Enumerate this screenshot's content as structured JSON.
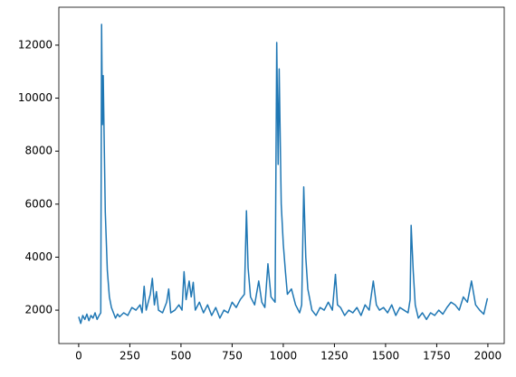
{
  "chart_data": {
    "type": "line",
    "x": [
      0,
      10,
      20,
      30,
      40,
      50,
      60,
      70,
      80,
      90,
      100,
      108,
      112,
      116,
      120,
      124,
      130,
      140,
      150,
      160,
      170,
      180,
      190,
      200,
      220,
      240,
      260,
      280,
      300,
      310,
      320,
      330,
      350,
      360,
      370,
      380,
      390,
      410,
      430,
      440,
      450,
      470,
      490,
      505,
      515,
      525,
      540,
      550,
      560,
      570,
      590,
      610,
      630,
      650,
      670,
      690,
      710,
      730,
      750,
      770,
      790,
      810,
      820,
      828,
      840,
      860,
      880,
      895,
      910,
      925,
      940,
      960,
      968,
      975,
      980,
      990,
      1000,
      1010,
      1020,
      1040,
      1060,
      1080,
      1090,
      1100,
      1110,
      1120,
      1140,
      1160,
      1180,
      1200,
      1220,
      1240,
      1255,
      1265,
      1280,
      1300,
      1320,
      1340,
      1360,
      1380,
      1400,
      1420,
      1440,
      1455,
      1470,
      1490,
      1510,
      1530,
      1550,
      1570,
      1590,
      1610,
      1620,
      1625,
      1635,
      1645,
      1660,
      1680,
      1700,
      1720,
      1740,
      1760,
      1780,
      1800,
      1820,
      1840,
      1860,
      1880,
      1900,
      1920,
      1940,
      1960,
      1980,
      1998
    ],
    "series": [
      {
        "color": "#1f77b4",
        "values": [
          1750,
          1500,
          1800,
          1650,
          1850,
          1600,
          1800,
          1700,
          1900,
          1650,
          1800,
          1900,
          12780,
          9000,
          10850,
          8700,
          5700,
          3500,
          2500,
          2100,
          1900,
          1700,
          1850,
          1750,
          1900,
          1800,
          2100,
          2000,
          2200,
          1900,
          2900,
          2000,
          2600,
          3200,
          2200,
          2700,
          2000,
          1900,
          2300,
          2800,
          1900,
          2000,
          2200,
          2000,
          3450,
          2400,
          3100,
          2500,
          3050,
          2000,
          2300,
          1900,
          2200,
          1800,
          2100,
          1700,
          2000,
          1900,
          2300,
          2100,
          2400,
          2600,
          5750,
          3600,
          2500,
          2200,
          3100,
          2300,
          2100,
          3750,
          2500,
          2300,
          12100,
          7500,
          11100,
          6000,
          4500,
          3500,
          2600,
          2800,
          2200,
          1900,
          2200,
          6650,
          4000,
          2800,
          2000,
          1800,
          2100,
          2000,
          2300,
          2000,
          3350,
          2200,
          2100,
          1800,
          2000,
          1900,
          2100,
          1800,
          2200,
          2000,
          3100,
          2200,
          2000,
          2100,
          1900,
          2200,
          1800,
          2100,
          2000,
          1900,
          2400,
          5200,
          3500,
          2200,
          1700,
          1900,
          1650,
          1900,
          1800,
          2000,
          1850,
          2100,
          2300,
          2200,
          2000,
          2500,
          2300,
          3100,
          2200,
          2000,
          1850,
          2450
        ]
      }
    ],
    "xlim": [
      -97,
      2080
    ],
    "ylim": [
      740,
      13430
    ],
    "xticks": [
      0,
      250,
      500,
      750,
      1000,
      1250,
      1500,
      1750,
      2000
    ],
    "yticks": [
      2000,
      4000,
      6000,
      8000,
      10000,
      12000
    ]
  }
}
